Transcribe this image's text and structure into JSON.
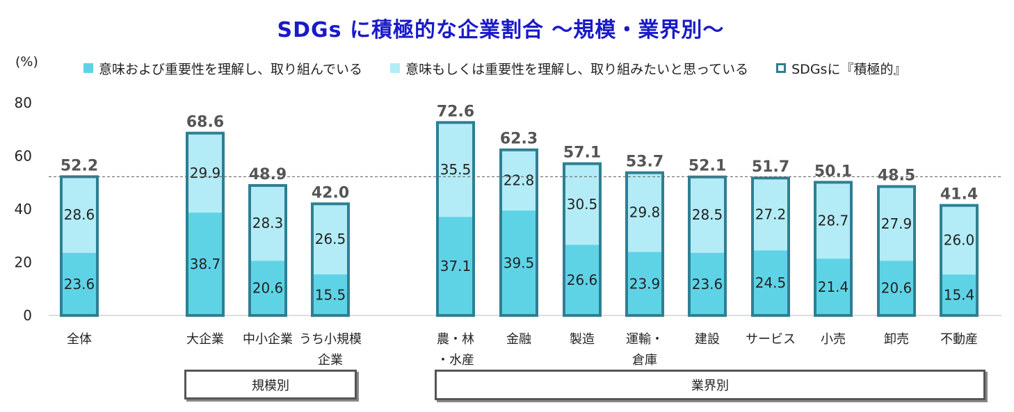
{
  "title": "SDGs に積極的な企業割合 ～規模・業界別～",
  "unit_label": "(%)",
  "colors": {
    "understand_and_act": "#5fd3e6",
    "want_to_act": "#b3ecf6",
    "outline": "#2e7f93",
    "average_line": "#666666"
  },
  "legend": [
    {
      "label": "意味および重要性を理解し、取り組んでいる",
      "swatch": "solid-dark"
    },
    {
      "label": "意味もしくは重要性を理解し、取り組みたいと思っている",
      "swatch": "solid-light"
    },
    {
      "label": "SDGsに『積極的』",
      "swatch": "outline"
    }
  ],
  "groups": [
    {
      "label": "規模別",
      "first": 1,
      "last": 3
    },
    {
      "label": "業界別",
      "first": 4,
      "last": 12
    }
  ],
  "chart_data": {
    "type": "bar",
    "stacked": true,
    "ylim": [
      0,
      80
    ],
    "yticks": [
      0,
      20,
      40,
      60,
      80
    ],
    "reference_line": 52.2,
    "categories": [
      [
        "全体"
      ],
      [
        "大企業"
      ],
      [
        "中小企業"
      ],
      [
        "うち小規模",
        "企業"
      ],
      [
        "農・林",
        "・水産"
      ],
      [
        "金融"
      ],
      [
        "製造"
      ],
      [
        "運輸・",
        "倉庫"
      ],
      [
        "建設"
      ],
      [
        "サービス"
      ],
      [
        "小売"
      ],
      [
        "卸売"
      ],
      [
        "不動産"
      ]
    ],
    "series": [
      {
        "name": "意味および重要性を理解し、取り組んでいる",
        "values": [
          23.6,
          38.7,
          20.6,
          15.5,
          37.1,
          39.5,
          26.6,
          23.9,
          23.6,
          24.5,
          21.4,
          20.6,
          15.4
        ]
      },
      {
        "name": "意味もしくは重要性を理解し、取り組みたいと思っている",
        "values": [
          28.6,
          29.9,
          28.3,
          26.5,
          35.5,
          22.8,
          30.5,
          29.8,
          28.5,
          27.2,
          28.7,
          27.9,
          26.0
        ]
      }
    ],
    "totals": [
      52.2,
      68.6,
      48.9,
      42.0,
      72.6,
      62.3,
      57.1,
      53.7,
      52.1,
      51.7,
      50.1,
      48.5,
      41.4
    ],
    "total_labels": [
      "52.2",
      "68.6",
      "48.9",
      "42.0",
      "72.6",
      "62.3",
      "57.1",
      "53.7",
      "52.1",
      "51.7",
      "50.1",
      "48.5",
      "41.4"
    ],
    "segment_labels": [
      [
        "23.6",
        "38.7",
        "20.6",
        "15.5",
        "37.1",
        "39.5",
        "26.6",
        "23.9",
        "23.6",
        "24.5",
        "21.4",
        "20.6",
        "15.4"
      ],
      [
        "28.6",
        "29.9",
        "28.3",
        "26.5",
        "35.5",
        "22.8",
        "30.5",
        "29.8",
        "28.5",
        "27.2",
        "28.7",
        "27.9",
        "26.0"
      ]
    ]
  }
}
